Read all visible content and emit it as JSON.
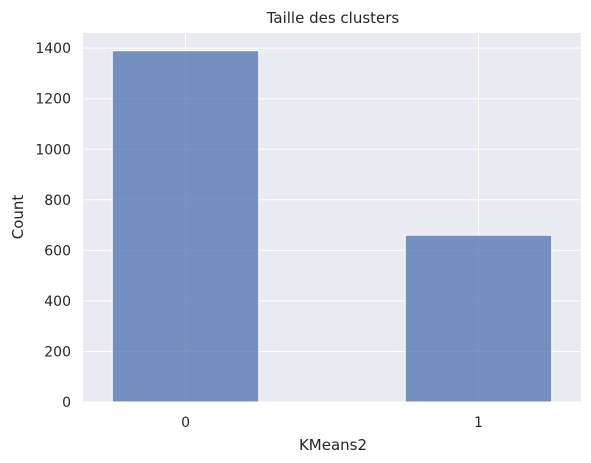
{
  "chart_data": {
    "type": "bar",
    "title": "Taille des clusters",
    "xlabel": "KMeans2",
    "ylabel": "Count",
    "categories": [
      "0",
      "1"
    ],
    "values": [
      1390,
      660
    ],
    "ylim": [
      0,
      1460
    ],
    "xlim": [
      -0.35,
      1.35
    ],
    "yticks": [
      0,
      200,
      400,
      600,
      800,
      1000,
      1200,
      1400
    ],
    "xticks": [
      0,
      1
    ],
    "bar_width": 0.5,
    "grid": true,
    "colors": {
      "bar_fill": "#4c72b0",
      "bar_stroke": "#ffffff",
      "plot_background": "#eaeaf2",
      "grid": "#ffffff",
      "text": "#262626"
    }
  }
}
